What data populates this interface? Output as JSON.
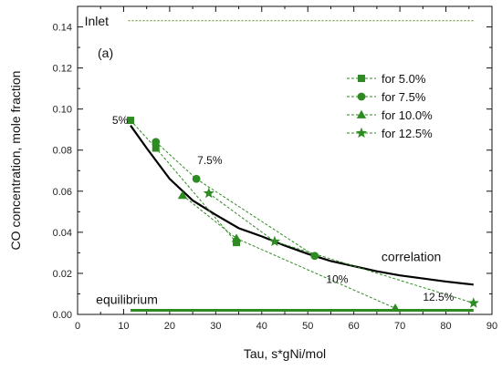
{
  "chart_data": {
    "type": "line",
    "panel_label": "(a)",
    "xlabel": "Tau, s*gNi/mol",
    "ylabel": "CO concentration, mole fraction",
    "xlim": [
      0,
      90
    ],
    "ylim": [
      0,
      0.15
    ],
    "x_ticks": [
      "0",
      "10",
      "20",
      "30",
      "40",
      "50",
      "60",
      "70",
      "80",
      "90"
    ],
    "y_ticks": [
      "0.00",
      "0.02",
      "0.04",
      "0.06",
      "0.08",
      "0.10",
      "0.12",
      "0.14"
    ],
    "legend_position": "top-right",
    "series": [
      {
        "name": "for  5.0%",
        "marker": "square",
        "color": "#2e8b22",
        "x": [
          11.5,
          17,
          34.5
        ],
        "y": [
          0.0945,
          0.081,
          0.035
        ]
      },
      {
        "name": "for  7.5%",
        "marker": "circle",
        "color": "#2e8b22",
        "x": [
          17,
          25.8,
          51.5
        ],
        "y": [
          0.084,
          0.066,
          0.0285
        ]
      },
      {
        "name": "for  10.0%",
        "marker": "triangle",
        "color": "#2e8b22",
        "x": [
          22.8,
          34.5,
          69
        ],
        "y": [
          0.058,
          0.037,
          0.003
        ]
      },
      {
        "name": "for 12.5%",
        "marker": "star",
        "color": "#2e8b22",
        "x": [
          28.5,
          42.8,
          86
        ],
        "y": [
          0.059,
          0.0355,
          0.0055
        ]
      }
    ],
    "correlation": {
      "label": "correlation",
      "color": "#000000",
      "x": [
        11.5,
        15,
        20,
        25,
        30,
        35,
        40,
        45,
        50,
        55,
        60,
        65,
        70,
        75,
        80,
        86
      ],
      "y": [
        0.092,
        0.081,
        0.066,
        0.0555,
        0.0485,
        0.042,
        0.038,
        0.0335,
        0.0295,
        0.026,
        0.0235,
        0.021,
        0.019,
        0.0175,
        0.016,
        0.0145
      ]
    },
    "inlet": {
      "label": "Inlet",
      "y": 0.143,
      "x": [
        11,
        86
      ],
      "color": "#5a8a1e"
    },
    "equilibrium": {
      "label": "equilibrium",
      "y": 0.002,
      "x": [
        11.5,
        86
      ],
      "color": "#2e8b22"
    },
    "annotations": [
      {
        "text": "5%",
        "x": 7.5,
        "y": 0.0945
      },
      {
        "text": "7.5%",
        "x": 26,
        "y": 0.075
      },
      {
        "text": "10%",
        "x": 54,
        "y": 0.017
      },
      {
        "text": "12.5%",
        "x": 75,
        "y": 0.0085
      }
    ]
  }
}
